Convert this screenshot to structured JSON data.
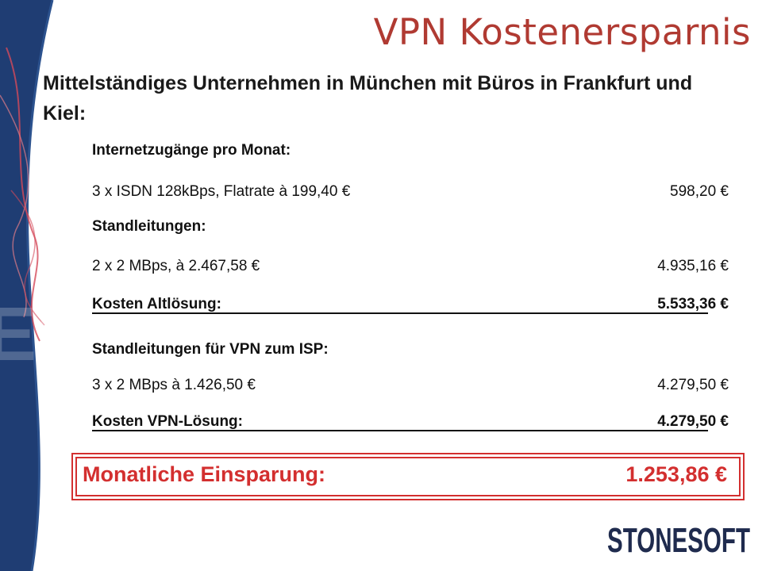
{
  "title": "VPN Kostenersparnis",
  "subtitle": "Mittelständiges Unternehmen in München mit Büros in Frankfurt und Kiel:",
  "rows": [
    {
      "label": "Internetzugänge pro Monat:",
      "amount": ""
    },
    {
      "label": "3 x ISDN 128kBps, Flatrate à 199,40 €",
      "amount": "598,20 €"
    },
    {
      "label": "Standleitungen:",
      "amount": ""
    },
    {
      "label": "2 x 2 MBps, à 2.467,58 €",
      "amount": "4.935,16 €"
    },
    {
      "label": "Kosten Altlösung:",
      "amount": "5.533,36 €"
    },
    {
      "label": "Standleitungen für VPN zum ISP:",
      "amount": ""
    },
    {
      "label": "3 x 2 MBps à 1.426,50 €",
      "amount": "4.279,50 €"
    },
    {
      "label": "Kosten VPN-Lösung:",
      "amount": "4.279,50 €"
    }
  ],
  "savings": {
    "label": "Monatliche Einsparung:",
    "amount": "1.253,86 €"
  },
  "logo": {
    "text": "STONESOFT"
  },
  "colors": {
    "title": "#b03a32",
    "accent": "#d32f2f",
    "side_band": "#1f3d73"
  }
}
